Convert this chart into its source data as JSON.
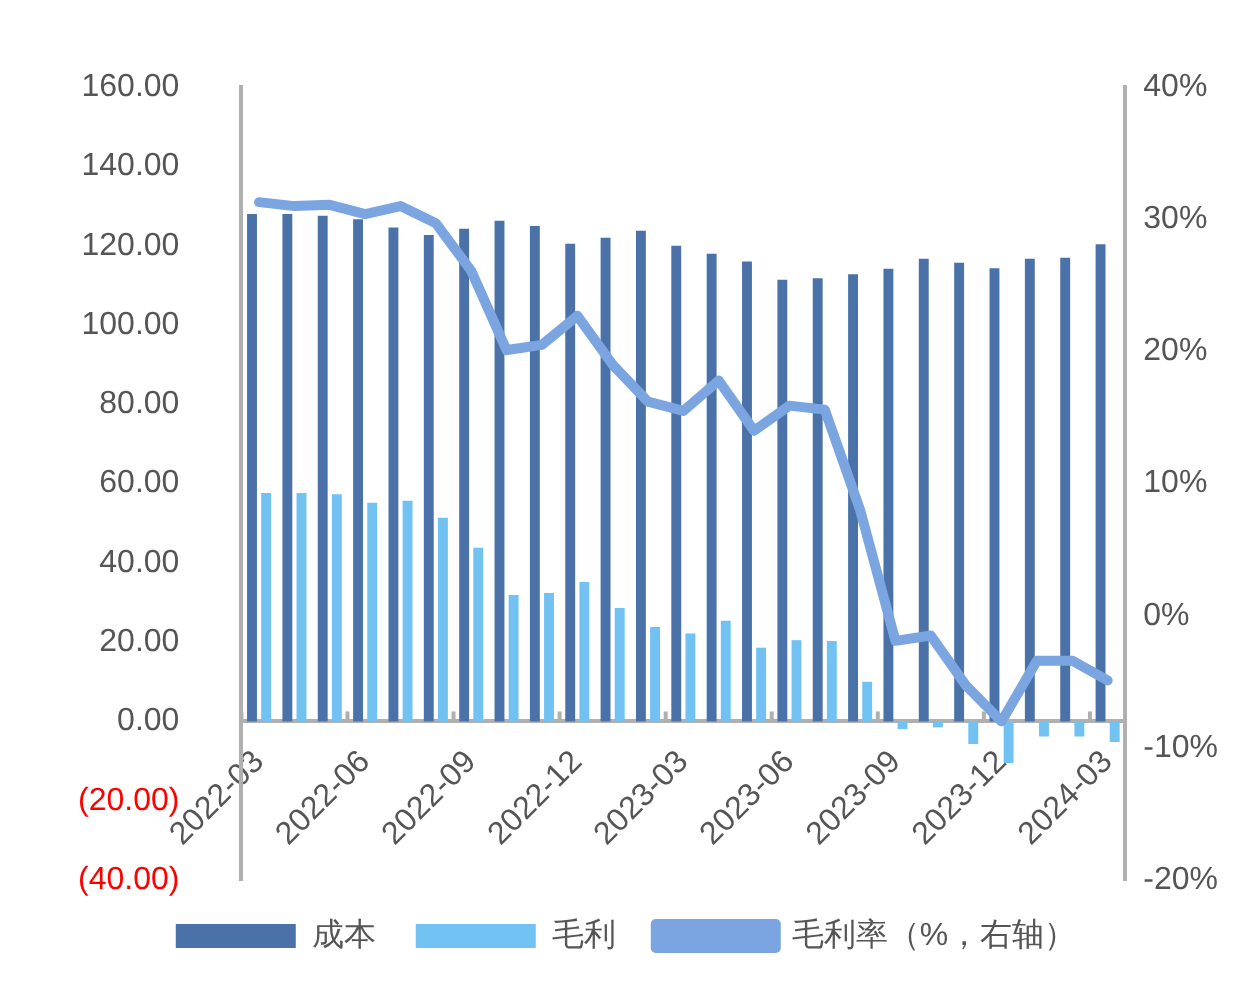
{
  "chart_data": {
    "type": "bar",
    "categories": [
      "2022-03",
      null,
      null,
      "2022-06",
      null,
      null,
      "2022-09",
      null,
      null,
      "2022-12",
      null,
      null,
      "2023-03",
      null,
      null,
      "2023-06",
      null,
      null,
      "2023-09",
      null,
      null,
      "2023-12",
      null,
      null,
      "2024-03"
    ],
    "series": [
      {
        "name": "成本",
        "color": "#4a72a8",
        "values": [
          128,
          128,
          127.6,
          126.7,
          124.6,
          122.7,
          124.3,
          126.3,
          125,
          120.5,
          122,
          123.8,
          120,
          118,
          116,
          111.4,
          111.8,
          112.8,
          114.2,
          116.7,
          115.7,
          114.3,
          116.7,
          117,
          120.4
        ]
      },
      {
        "name": "毛利",
        "color": "#71c2f2",
        "values": [
          57.6,
          57.6,
          57.3,
          55.2,
          55.7,
          51.4,
          43.8,
          31.9,
          32.4,
          35.2,
          28.6,
          23.8,
          22.2,
          25.4,
          18.6,
          20.5,
          20.3,
          10,
          -1.9,
          -1.5,
          -5.7,
          -10.5,
          -3.8,
          -3.8,
          -5.2
        ]
      },
      {
        "name": "毛利率（%，右轴）",
        "type": "line",
        "axis": "y2",
        "color": "#7ba5e0",
        "values": [
          31.3,
          31.0,
          31.1,
          30.4,
          31.0,
          29.7,
          26.1,
          20.1,
          20.5,
          22.7,
          19.0,
          16.2,
          15.5,
          17.8,
          14,
          15.9,
          15.6,
          8,
          -1.9,
          -1.5,
          -5.3,
          -8,
          -3.4,
          -3.4,
          -4.9
        ]
      }
    ],
    "ylim": [
      -40,
      160
    ],
    "yticks": [
      {
        "value": -40,
        "label": "(40.00)"
      },
      {
        "value": -20,
        "label": "(20.00)"
      },
      {
        "value": 0,
        "label": "0.00"
      },
      {
        "value": 20,
        "label": "20.00"
      },
      {
        "value": 40,
        "label": "40.00"
      },
      {
        "value": 60,
        "label": "60.00"
      },
      {
        "value": 80,
        "label": "80.00"
      },
      {
        "value": 100,
        "label": "100.00"
      },
      {
        "value": 120,
        "label": "120.00"
      },
      {
        "value": 140,
        "label": "140.00"
      },
      {
        "value": 160,
        "label": "160.00"
      }
    ],
    "y2lim": [
      -20,
      40
    ],
    "y2ticks": [
      {
        "value": -20,
        "label": "-20%"
      },
      {
        "value": -10,
        "label": "-10%"
      },
      {
        "value": 0,
        "label": "0%"
      },
      {
        "value": 10,
        "label": "10%"
      },
      {
        "value": 20,
        "label": "20%"
      },
      {
        "value": 30,
        "label": "30%"
      },
      {
        "value": 40,
        "label": "40%"
      }
    ],
    "grid": false,
    "legend": "bottom",
    "marker": "none",
    "line_style": "solid"
  }
}
